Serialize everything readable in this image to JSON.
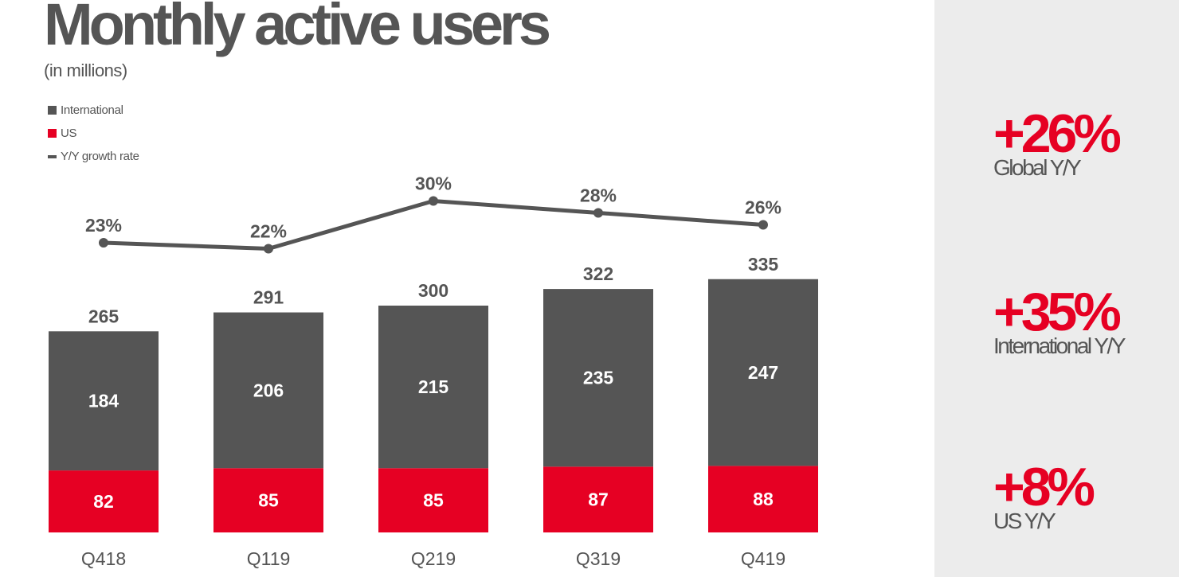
{
  "page": {
    "title": "Monthly active users",
    "subtitle": "(in millions)"
  },
  "colors": {
    "international": "#555555",
    "us": "#e60023",
    "growth_line": "#555555",
    "panel_bg": "#ececec",
    "accent": "#e60023"
  },
  "chart_data": {
    "type": "bar",
    "stacked": true,
    "categories": [
      "Q418",
      "Q119",
      "Q219",
      "Q319",
      "Q419"
    ],
    "series": [
      {
        "name": "US",
        "values": [
          82,
          85,
          85,
          87,
          88
        ]
      },
      {
        "name": "International",
        "values": [
          184,
          206,
          215,
          235,
          247
        ]
      }
    ],
    "totals": [
      265,
      291,
      300,
      322,
      335
    ],
    "line_series": {
      "name": "Y/Y growth rate",
      "values": [
        23,
        22,
        30,
        28,
        26
      ],
      "labels": [
        "23%",
        "22%",
        "30%",
        "28%",
        "26%"
      ]
    },
    "title": "Monthly active users",
    "subtitle": "(in millions)",
    "legend": [
      "International",
      "US",
      "Y/Y growth rate"
    ],
    "legend_position": "top-left",
    "grid": false
  },
  "stats": [
    {
      "value": "+26%",
      "label": "Global Y/Y"
    },
    {
      "value": "+35%",
      "label": "International Y/Y"
    },
    {
      "value": "+8%",
      "label": "US Y/Y"
    }
  ]
}
